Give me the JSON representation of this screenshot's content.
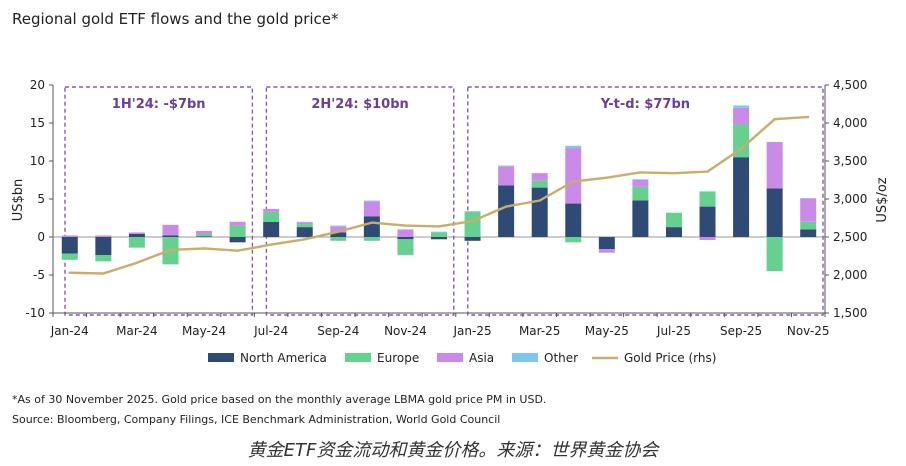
{
  "title": "Regional gold ETF flows and the gold price*",
  "footnote": "*As of 30 November 2025. Gold price based on the monthly average LBMA gold price PM in USD.",
  "source": "Source: Bloomberg, Company Filings, ICE Benchmark Administration, World Gold Council",
  "caption": "黄金ETF资金流动和黄金价格。来源：世界黄金协会",
  "colors": {
    "north_america": "#2e4a75",
    "europe": "#66d18f",
    "asia": "#c98ae8",
    "other": "#7ec6f0",
    "gold_price": "#c9ad6a",
    "period_box": "#8a5aa8",
    "period_label": "#6b3f94"
  },
  "chart_data": {
    "type": "bar",
    "stacked": true,
    "categories": [
      "Jan-24",
      "Feb-24",
      "Mar-24",
      "Apr-24",
      "May-24",
      "Jun-24",
      "Jul-24",
      "Aug-24",
      "Sep-24",
      "Oct-24",
      "Nov-24",
      "Dec-24",
      "Jan-25",
      "Feb-25",
      "Mar-25",
      "Apr-25",
      "May-25",
      "Jun-25",
      "Jul-25",
      "Aug-25",
      "Sep-25",
      "Oct-25",
      "Nov-25"
    ],
    "x_tick_labels": [
      "Jan-24",
      "Mar-24",
      "May-24",
      "Jul-24",
      "Sep-24",
      "Nov-24",
      "Jan-25",
      "Mar-25",
      "May-25",
      "Jul-25",
      "Sep-25",
      "Nov-25"
    ],
    "ylabel": "US$bn",
    "ylim": [
      -10,
      20
    ],
    "yticks": [
      "-10",
      "-5",
      "0",
      "5",
      "10",
      "15",
      "20"
    ],
    "y2label": "US$/oz",
    "y2lim": [
      1500,
      4500
    ],
    "y2ticks": [
      "1,500",
      "2,000",
      "2,500",
      "3,000",
      "3,500",
      "4,000",
      "4,500"
    ],
    "series": [
      {
        "name": "North America",
        "key": "north_america",
        "values": [
          -2.2,
          -2.4,
          0.4,
          0.2,
          0.1,
          -0.7,
          2.0,
          1.3,
          0.6,
          2.7,
          -0.3,
          -0.3,
          -0.5,
          6.8,
          6.5,
          4.4,
          -1.6,
          4.8,
          1.3,
          4.0,
          10.5,
          6.4,
          1.0
        ]
      },
      {
        "name": "Europe",
        "key": "europe",
        "values": [
          -0.8,
          -0.8,
          -1.4,
          -3.6,
          0.3,
          1.5,
          1.3,
          0.4,
          -0.5,
          -0.5,
          -2.0,
          0.6,
          3.3,
          0.0,
          0.9,
          -0.7,
          0.0,
          1.8,
          1.9,
          2.0,
          4.3,
          -4.5,
          1.0
        ]
      },
      {
        "name": "Asia",
        "key": "asia",
        "values": [
          0.2,
          0.2,
          0.2,
          1.4,
          0.4,
          0.5,
          0.4,
          0.2,
          0.8,
          2.0,
          1.0,
          0.0,
          0.0,
          2.5,
          1.0,
          7.3,
          -0.4,
          0.9,
          0.0,
          -0.4,
          2.2,
          6.1,
          3.1
        ]
      },
      {
        "name": "Other",
        "key": "other",
        "values": [
          0.0,
          0.0,
          0.0,
          0.0,
          0.0,
          0.0,
          0.0,
          0.1,
          0.1,
          0.1,
          -0.1,
          0.1,
          0.1,
          0.1,
          0.0,
          0.3,
          -0.1,
          0.1,
          0.0,
          0.0,
          0.3,
          0.0,
          0.0
        ]
      }
    ],
    "line_series": {
      "name": "Gold Price (rhs)",
      "axis": "right",
      "values": [
        2030,
        2020,
        2160,
        2330,
        2350,
        2320,
        2400,
        2470,
        2570,
        2690,
        2650,
        2640,
        2710,
        2900,
        2980,
        3230,
        3280,
        3350,
        3340,
        3360,
        3660,
        4050,
        4080
      ]
    },
    "legend": [
      "North America",
      "Europe",
      "Asia",
      "Other",
      "Gold Price (rhs)"
    ],
    "legend_position": "bottom",
    "annotations": [
      {
        "label": "1H'24: -$7bn",
        "from": "Jan-24",
        "to": "Jun-24"
      },
      {
        "label": "2H'24: $10bn",
        "from": "Jul-24",
        "to": "Dec-24"
      },
      {
        "label": "Y-t-d: $77bn",
        "from": "Jan-25",
        "to": "Nov-25"
      }
    ]
  }
}
